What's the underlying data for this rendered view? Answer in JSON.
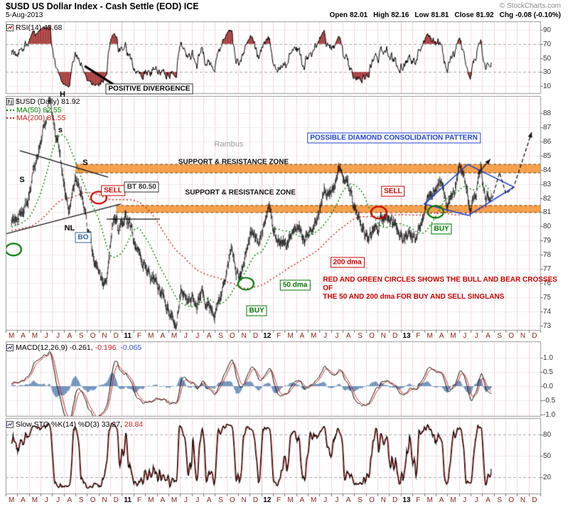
{
  "header": {
    "title": "$USD US Dollar Index - Cash Settle (EOD) ICE",
    "copyright": "© StockCharts.com",
    "date": "5-Aug-2013",
    "quote": {
      "open_l": "Open",
      "open_v": "82.01",
      "high_l": "High",
      "high_v": "82.16",
      "low_l": "Low",
      "low_v": "81.81",
      "close_l": "Close",
      "close_v": "81.92",
      "chg_l": "Chg",
      "chg_v": "-0.08 (-0.10%)"
    }
  },
  "panels": {
    "rsi": {
      "label": "RSI(14) 43.68",
      "yticks": [
        "90",
        "70",
        "50",
        "30",
        "10"
      ]
    },
    "price": {
      "symbol_label": "$USD (Daily) 81.92",
      "ma50_label": "MA(50) 82.55",
      "ma200_label": "MA(200) 81.55",
      "yticks": [
        "88",
        "87",
        "86",
        "85",
        "84",
        "83",
        "82",
        "81",
        "80",
        "79",
        "78",
        "77",
        "76",
        "75",
        "74",
        "73"
      ]
    },
    "macd": {
      "name": "MACD(12,26,9)",
      "v1": "-0.261,",
      "v2": "-0.196.",
      "v3": "-0.065",
      "yticks": [
        "1.0",
        "0.5",
        "0.0",
        "-0.5",
        "-1.0"
      ]
    },
    "sto": {
      "name": "Slow STO %K(14) %D(3)",
      "v1": "33.27,",
      "v2": "28.84",
      "yticks": [
        "80",
        "50",
        "20"
      ]
    }
  },
  "xaxis": {
    "labels": [
      "M",
      "A",
      "M",
      "J",
      "J",
      "A",
      "S",
      "O",
      "N",
      "D",
      "11",
      "F",
      "M",
      "A",
      "M",
      "J",
      "J",
      "A",
      "S",
      "O",
      "N",
      "D",
      "12",
      "F",
      "M",
      "A",
      "M",
      "J",
      "J",
      "A",
      "S",
      "O",
      "N",
      "D",
      "13",
      "F",
      "M",
      "A",
      "M",
      "J",
      "J",
      "A",
      "S",
      "O",
      "N",
      "D"
    ]
  },
  "annotations": {
    "rsi": {
      "divergence": {
        "text": "POSITIVE DIVERGENCE",
        "i": 11.85,
        "v": 6,
        "name": "positive-divergence-label"
      },
      "divergence_line": {
        "from": [
          6.3,
          38.5
        ],
        "to": [
          8.9,
          11
        ]
      }
    },
    "price": {
      "letters": [
        {
          "text": "S",
          "i": 0.91,
          "p": 83.3,
          "name": "left-shoulder-letter"
        },
        {
          "text": "H",
          "i": 4.39,
          "p": 89.3,
          "name": "head-letter"
        },
        {
          "text": "s",
          "i": 4.21,
          "p": 86.8,
          "name": "small-shoulder-letter"
        },
        {
          "text": "S",
          "i": 6.35,
          "p": 84.5,
          "name": "right-shoulder-letter"
        },
        {
          "text": "NL",
          "i": 5.0,
          "p": 79.87,
          "name": "neckline-letter"
        }
      ],
      "boxes": [
        {
          "text": "SELL",
          "i": 8.74,
          "p": 82.55,
          "color": "#cc0000",
          "name": "sell-label-1"
        },
        {
          "text": "SELL",
          "i": 32.83,
          "p": 82.5,
          "color": "#cc0000",
          "name": "sell-label-2"
        },
        {
          "text": "BUY",
          "i": 21.1,
          "p": 74.05,
          "color": "#007700",
          "name": "buy-label-1"
        },
        {
          "text": "BUY",
          "i": 37.0,
          "p": 79.8,
          "color": "#007700",
          "name": "buy-label-2"
        },
        {
          "text": "BO",
          "i": 6.17,
          "p": 79.2,
          "color": "#336699",
          "name": "breakout-label"
        },
        {
          "text": "BT 80.50",
          "i": 11.2,
          "p": 82.78,
          "color": "#333333",
          "name": "backtest-label"
        },
        {
          "text": "200 dma",
          "i": 28.9,
          "p": 77.45,
          "color": "#cc0000",
          "name": "dma-200-label"
        },
        {
          "text": "50 dma",
          "i": 24.4,
          "p": 75.85,
          "color": "#007700",
          "name": "dma-50-label"
        },
        {
          "text": "POSSIBLE DIAMOND CONSOLIDATION PATTERN",
          "i": 32.9,
          "p": 86.25,
          "color": "#2244cc",
          "name": "diamond-pattern-label"
        }
      ],
      "texts": [
        {
          "text": "Rambus",
          "i": 18.7,
          "p": 85.8,
          "color": "#999999",
          "cls": "ram",
          "name": "rambus-watermark"
        },
        {
          "text": "SUPPORT & RESISTANCE ZONE",
          "i": 19.1,
          "p": 84.55,
          "name": "support-resistance-zone-label-1"
        },
        {
          "text": "SUPPORT & RESISTANCE ZONE",
          "i": 19.7,
          "p": 82.4,
          "name": "support-resistance-zone-label-2"
        },
        {
          "text": "RED AND GREEN CIRCLES SHOWS THE BULL AND BEAR CROSSES OF\nTHE 50 AND 200 dma FOR BUY AND SELL SINGLANS",
          "i": 26.8,
          "p": 76.2,
          "color": "#cc0000",
          "cls": "note",
          "anchor": "left",
          "name": "crosses-note"
        }
      ],
      "circles": [
        {
          "i": 7.51,
          "p": 82.03,
          "color": "#cc0000"
        },
        {
          "i": 31.61,
          "p": 80.98,
          "color": "#cc0000"
        },
        {
          "i": 0.17,
          "p": 78.37,
          "color": "#007700"
        },
        {
          "i": 20.17,
          "p": 75.96,
          "color": "#007700"
        },
        {
          "i": 36.5,
          "p": 81.03,
          "color": "#007700"
        }
      ],
      "trendlines": [
        {
          "from": [
            0.72,
            85.34
          ],
          "to": [
            8.31,
            83.48
          ]
        },
        {
          "from": [
            -0.99,
            79.37
          ],
          "to": [
            9.41,
            81.58
          ]
        },
        {
          "from": [
            8.19,
            80.52
          ],
          "to": [
            12.77,
            80.52
          ]
        }
      ],
      "diamond": [
        [
          35.52,
          81.58
        ],
        [
          39.25,
          84.38
        ],
        [
          43.23,
          82.78
        ],
        [
          39.31,
          80.78
        ]
      ],
      "dashed_path": [
        [
          41.35,
          81.95
        ],
        [
          42.0,
          83.8
        ],
        [
          42.55,
          82.3
        ],
        [
          43.23,
          82.78
        ]
      ],
      "arrows": [
        {
          "from": [
            43.3,
            83.0
          ],
          "to": [
            44.76,
            86.64
          ],
          "dash": true
        },
        {
          "from": [
            40.1,
            83.7
          ],
          "to": [
            41.2,
            84.74
          ],
          "dash": false
        }
      ],
      "zones": [
        {
          "i_start": 6.0,
          "p_low": 83.78,
          "p_high": 84.38
        },
        {
          "i_start": 9.5,
          "p_low": 80.98,
          "p_high": 81.48
        }
      ]
    }
  },
  "chart_data": {
    "type": "line",
    "title": "$USD US Dollar Index - Cash Settle (EOD) ICE",
    "date": "5-Aug-2013",
    "ohlc": {
      "open": 82.01,
      "high": 82.16,
      "low": 81.81,
      "close": 81.92,
      "chg": "-0.08 (-0.10%)"
    },
    "x_axis": {
      "start": "Mar-2010",
      "end": "Dec-2013",
      "slots": 46
    },
    "rsi_panel": {
      "name": "RSI(14)",
      "last": 43.68,
      "ticks": [
        90,
        70,
        50,
        30,
        10
      ],
      "range": [
        0,
        100
      ]
    },
    "price_panel": {
      "name": "$USD (Daily)",
      "last": 81.92,
      "ma50": 82.55,
      "ma200": 81.55,
      "ylim": [
        73,
        88
      ],
      "support_resistance_zones": [
        [
          83.8,
          84.4
        ],
        [
          81.0,
          81.5
        ]
      ],
      "monthly_close_estimates": [
        [
          0,
          80.2
        ],
        [
          0.7,
          81.0
        ],
        [
          1.4,
          81.7
        ],
        [
          2,
          84.0
        ],
        [
          2.7,
          86.5
        ],
        [
          3.2,
          88.5
        ],
        [
          3.5,
          88.0
        ],
        [
          4,
          85.8
        ],
        [
          4.6,
          82.6
        ],
        [
          5,
          81.0
        ],
        [
          5.5,
          83.2
        ],
        [
          6,
          82.6
        ],
        [
          6.6,
          79.6
        ],
        [
          7.2,
          77.5
        ],
        [
          7.8,
          76.2
        ],
        [
          8.2,
          76.5
        ],
        [
          8.8,
          81.0
        ],
        [
          9.2,
          79.7
        ],
        [
          9.8,
          80.9
        ],
        [
          10.3,
          80.0
        ],
        [
          10.8,
          78.3
        ],
        [
          11.3,
          77.8
        ],
        [
          12,
          76.4
        ],
        [
          12.6,
          75.9
        ],
        [
          13.2,
          74.6
        ],
        [
          13.9,
          73.3
        ],
        [
          14.2,
          73.0
        ],
        [
          14.6,
          75.4
        ],
        [
          15,
          74.4
        ],
        [
          15.5,
          75.1
        ],
        [
          16,
          74.3
        ],
        [
          16.4,
          75.8
        ],
        [
          16.8,
          74.2
        ],
        [
          17.4,
          73.9
        ],
        [
          18,
          74.6
        ],
        [
          18.6,
          77.3
        ],
        [
          18.9,
          78.6
        ],
        [
          19.3,
          76.9
        ],
        [
          19.7,
          76.4
        ],
        [
          20.2,
          78.2
        ],
        [
          20.7,
          79.5
        ],
        [
          21.2,
          78.8
        ],
        [
          21.8,
          80.4
        ],
        [
          22.2,
          81.4
        ],
        [
          22.7,
          79.4
        ],
        [
          23.2,
          79.0
        ],
        [
          23.7,
          78.5
        ],
        [
          24.2,
          79.8
        ],
        [
          24.7,
          80.1
        ],
        [
          25.2,
          79.1
        ],
        [
          25.8,
          79.6
        ],
        [
          26.3,
          80.6
        ],
        [
          26.9,
          82.9
        ],
        [
          27.3,
          82.3
        ],
        [
          27.8,
          82.6
        ],
        [
          28.4,
          83.9
        ],
        [
          28.9,
          83.1
        ],
        [
          29.5,
          81.4
        ],
        [
          30.1,
          80.1
        ],
        [
          30.6,
          79.0
        ],
        [
          31.2,
          79.8
        ],
        [
          31.8,
          80.3
        ],
        [
          32.3,
          81.0
        ],
        [
          32.8,
          80.2
        ],
        [
          33.3,
          79.9
        ],
        [
          33.8,
          79.4
        ],
        [
          34.3,
          79.9
        ],
        [
          34.7,
          79.2
        ],
        [
          35.2,
          80.4
        ],
        [
          35.8,
          81.9
        ],
        [
          36.3,
          82.8
        ],
        [
          36.7,
          83.1
        ],
        [
          37.2,
          82.5
        ],
        [
          37.6,
          82.0
        ],
        [
          38.1,
          82.3
        ],
        [
          38.6,
          84.2
        ],
        [
          39.0,
          83.4
        ],
        [
          39.5,
          80.8
        ],
        [
          40.0,
          82.4
        ],
        [
          40.4,
          84.5
        ],
        [
          40.8,
          81.9
        ],
        [
          41.1,
          82.3
        ],
        [
          41.35,
          81.92
        ]
      ]
    },
    "macd_panel": {
      "name": "MACD(12,26,9)",
      "macd": -0.261,
      "signal": -0.196,
      "hist": -0.065,
      "ticks": [
        1.0,
        0.5,
        0.0,
        -0.5,
        -1.0
      ]
    },
    "sto_panel": {
      "name": "Slow STO %K(14) %D(3)",
      "k": 33.27,
      "d": 28.84,
      "ticks": [
        80,
        50,
        20
      ]
    }
  }
}
